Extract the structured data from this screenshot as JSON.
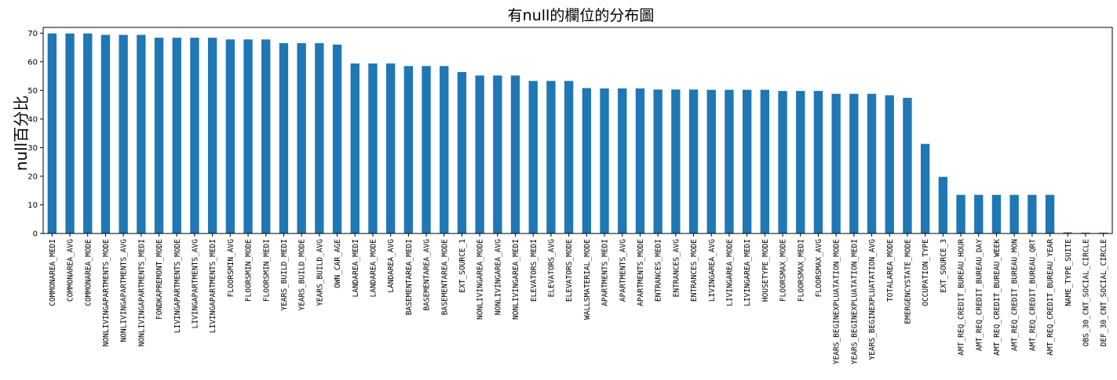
{
  "chart_data": {
    "type": "bar",
    "title": "有null的欄位的分布圖",
    "xlabel": "",
    "ylabel": "null百分比",
    "ylim": [
      0,
      72
    ],
    "yticks": [
      0,
      10,
      20,
      30,
      40,
      50,
      60,
      70
    ],
    "bar_color": "#1f77b4",
    "grid": false,
    "categories": [
      "COMMONAREA_MEDI",
      "COMMONAREA_AVG",
      "COMMONAREA_MODE",
      "NONLIVINGAPARTMENTS_MODE",
      "NONLIVINGAPARTMENTS_AVG",
      "NONLIVINGAPARTMENTS_MEDI",
      "FONDKAPREMONT_MODE",
      "LIVINGAPARTMENTS_MODE",
      "LIVINGAPARTMENTS_AVG",
      "LIVINGAPARTMENTS_MEDI",
      "FLOORSMIN_AVG",
      "FLOORSMIN_MODE",
      "FLOORSMIN_MEDI",
      "YEARS_BUILD_MEDI",
      "YEARS_BUILD_MODE",
      "YEARS_BUILD_AVG",
      "OWN_CAR_AGE",
      "LANDAREA_MEDI",
      "LANDAREA_MODE",
      "LANDAREA_AVG",
      "BASEMENTAREA_MEDI",
      "BASEMENTAREA_AVG",
      "BASEMENTAREA_MODE",
      "EXT_SOURCE_1",
      "NONLIVINGAREA_MODE",
      "NONLIVINGAREA_AVG",
      "NONLIVINGAREA_MEDI",
      "ELEVATORS_MEDI",
      "ELEVATORS_AVG",
      "ELEVATORS_MODE",
      "WALLSMATERIAL_MODE",
      "APARTMENTS_MEDI",
      "APARTMENTS_AVG",
      "APARTMENTS_MODE",
      "ENTRANCES_MEDI",
      "ENTRANCES_AVG",
      "ENTRANCES_MODE",
      "LIVINGAREA_AVG",
      "LIVINGAREA_MODE",
      "LIVINGAREA_MEDI",
      "HOUSETYPE_MODE",
      "FLOORSMAX_MODE",
      "FLOORSMAX_MEDI",
      "FLOORSMAX_AVG",
      "YEARS_BEGINEXPLUATATION_MODE",
      "YEARS_BEGINEXPLUATATION_MEDI",
      "YEARS_BEGINEXPLUATATION_AVG",
      "TOTALAREA_MODE",
      "EMERGENCYSTATE_MODE",
      "OCCUPATION_TYPE",
      "EXT_SOURCE_3",
      "AMT_REQ_CREDIT_BUREAU_HOUR",
      "AMT_REQ_CREDIT_BUREAU_DAY",
      "AMT_REQ_CREDIT_BUREAU_WEEK",
      "AMT_REQ_CREDIT_BUREAU_MON",
      "AMT_REQ_CREDIT_BUREAU_QRT",
      "AMT_REQ_CREDIT_BUREAU_YEAR",
      "NAME_TYPE_SUITE",
      "OBS_30_CNT_SOCIAL_CIRCLE",
      "DEF_30_CNT_SOCIAL_CIRCLE"
    ],
    "values": [
      69.9,
      69.9,
      69.9,
      69.4,
      69.4,
      69.4,
      68.4,
      68.4,
      68.4,
      68.4,
      67.8,
      67.8,
      67.8,
      66.5,
      66.5,
      66.5,
      66.0,
      59.4,
      59.4,
      59.4,
      58.5,
      58.5,
      58.5,
      56.4,
      55.2,
      55.2,
      55.2,
      53.3,
      53.3,
      53.3,
      50.8,
      50.7,
      50.7,
      50.7,
      50.3,
      50.3,
      50.3,
      50.2,
      50.2,
      50.2,
      50.2,
      49.8,
      49.8,
      49.8,
      48.8,
      48.8,
      48.8,
      48.3,
      47.4,
      31.3,
      19.8,
      13.5,
      13.5,
      13.5,
      13.5,
      13.5,
      13.5,
      0.4,
      0.3,
      0.3
    ]
  }
}
